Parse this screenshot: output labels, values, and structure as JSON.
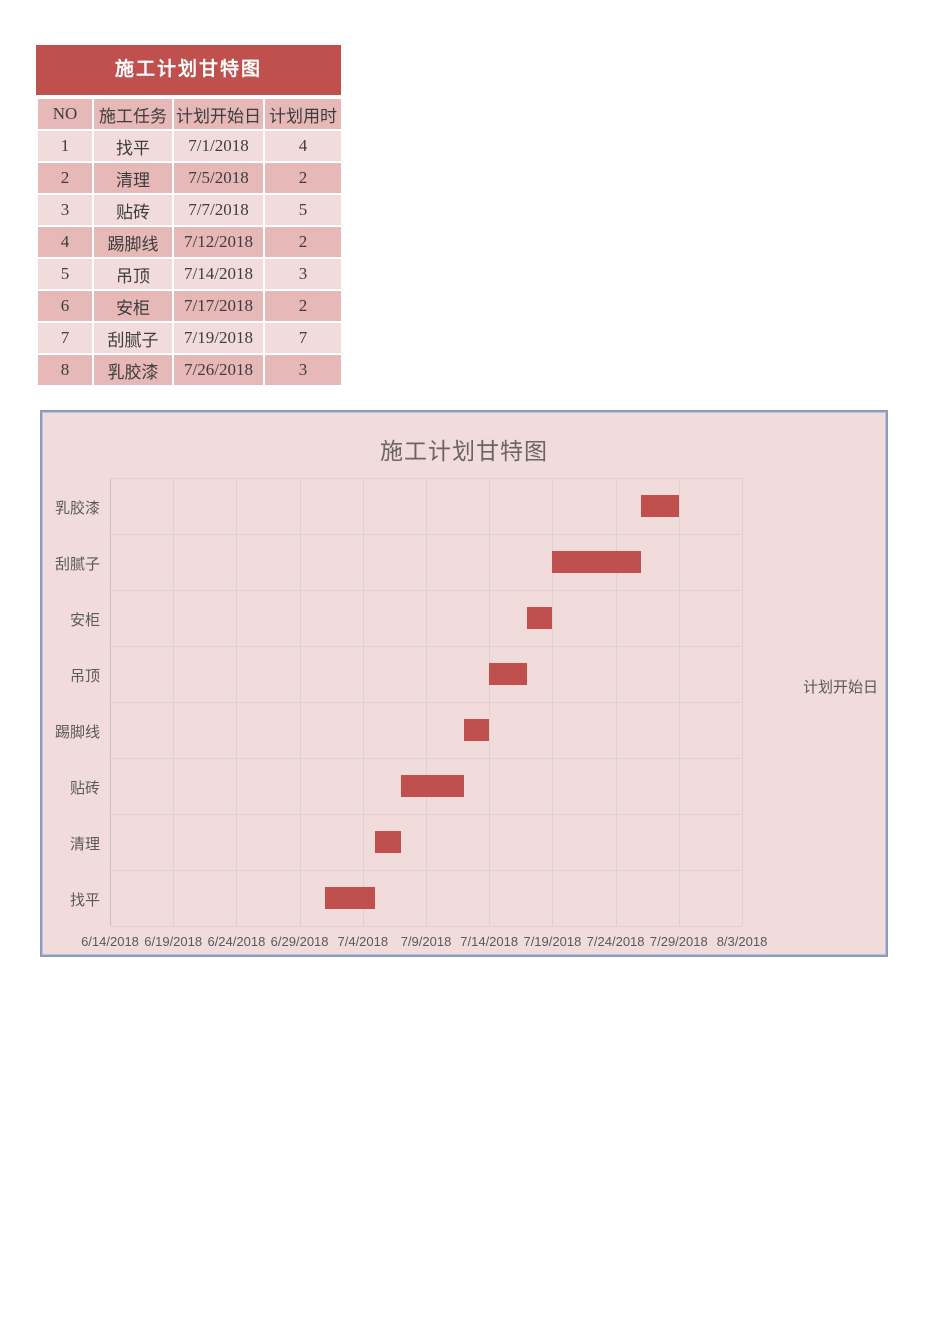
{
  "table": {
    "title": "施工计划甘特图",
    "headers": [
      "NO",
      "施工任务",
      "计划开始日",
      "计划用时"
    ],
    "rows": [
      {
        "no": "1",
        "task": "找平",
        "start": "7/1/2018",
        "days": "4"
      },
      {
        "no": "2",
        "task": "清理",
        "start": "7/5/2018",
        "days": "2"
      },
      {
        "no": "3",
        "task": "贴砖",
        "start": "7/7/2018",
        "days": "5"
      },
      {
        "no": "4",
        "task": "踢脚线",
        "start": "7/12/2018",
        "days": "2"
      },
      {
        "no": "5",
        "task": "吊顶",
        "start": "7/14/2018",
        "days": "3"
      },
      {
        "no": "6",
        "task": "安柜",
        "start": "7/17/2018",
        "days": "2"
      },
      {
        "no": "7",
        "task": "刮腻子",
        "start": "7/19/2018",
        "days": "7"
      },
      {
        "no": "8",
        "task": "乳胶漆",
        "start": "7/26/2018",
        "days": "3"
      }
    ],
    "colors": {
      "banner_bg": "#c0504d",
      "banner_text": "#ffffff",
      "row_light": "#f2dcdb",
      "row_dark": "#e6b8b7",
      "text": "#3d3d3d"
    }
  },
  "chart_data": {
    "type": "bar",
    "subtype": "horizontal-gantt",
    "title": "施工计划甘特图",
    "right_axis_title": "计划开始日",
    "categories_top_to_bottom": [
      "乳胶漆",
      "刮腻子",
      "安柜",
      "吊顶",
      "踢脚线",
      "贴砖",
      "清理",
      "找平"
    ],
    "bars": [
      {
        "task": "乳胶漆",
        "start": "7/26/2018",
        "duration_days": 3
      },
      {
        "task": "刮腻子",
        "start": "7/19/2018",
        "duration_days": 7
      },
      {
        "task": "安柜",
        "start": "7/17/2018",
        "duration_days": 2
      },
      {
        "task": "吊顶",
        "start": "7/14/2018",
        "duration_days": 3
      },
      {
        "task": "踢脚线",
        "start": "7/12/2018",
        "duration_days": 2
      },
      {
        "task": "贴砖",
        "start": "7/7/2018",
        "duration_days": 5
      },
      {
        "task": "清理",
        "start": "7/5/2018",
        "duration_days": 2
      },
      {
        "task": "找平",
        "start": "7/1/2018",
        "duration_days": 4
      }
    ],
    "x_axis": {
      "min": "6/14/2018",
      "max": "8/3/2018",
      "tick_interval_days": 5,
      "tick_labels": [
        "6/14/2018",
        "6/19/2018",
        "6/24/2018",
        "6/29/2018",
        "7/4/2018",
        "7/9/2018",
        "7/14/2018",
        "7/19/2018",
        "7/24/2018",
        "7/29/2018",
        "8/3/2018"
      ]
    },
    "grid": true,
    "legend": "none",
    "bar_color": "#c0504d",
    "background": "#f2dcdb",
    "gridline_color": "#ddd2d1",
    "title_color": "#6b6561",
    "label_color": "#595959"
  }
}
